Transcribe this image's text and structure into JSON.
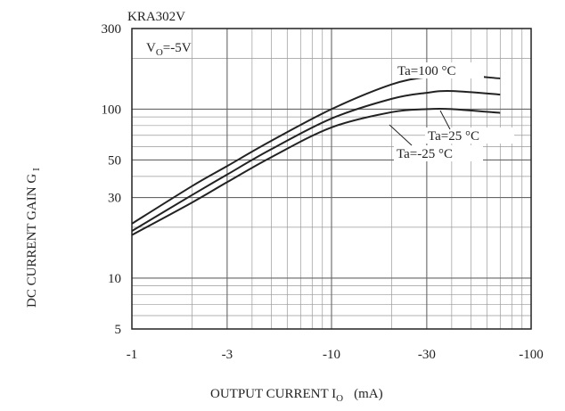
{
  "chart_data": {
    "type": "line",
    "title": "KRA302V",
    "annotation": "VO=-5V",
    "annotation_main": "V",
    "annotation_sub": "O",
    "annotation_rest": "=-5V",
    "xlabel_main": "OUTPUT CURRENT I",
    "xlabel_sub": "O",
    "xlabel_unit": "(mA)",
    "ylabel_main": "DC CURRENT GAIN G",
    "ylabel_sub": "I",
    "xscale": "log",
    "yscale": "log",
    "xlim": [
      -1,
      -100
    ],
    "ylim": [
      5,
      300
    ],
    "grid": true,
    "x_ticks": [
      -1,
      -3,
      -10,
      -30,
      -100
    ],
    "x_tick_labels": [
      "-1",
      "-3",
      "-10",
      "-30",
      "-100"
    ],
    "y_ticks": [
      5,
      10,
      30,
      50,
      100,
      300
    ],
    "y_tick_labels": [
      "5",
      "10",
      "30",
      "50",
      "100",
      "300"
    ],
    "series": [
      {
        "name": "Ta=100°C",
        "label": "Ta=100 °C",
        "x": [
          -1,
          -2,
          -3,
          -5,
          -10,
          -20,
          -30,
          -40,
          -70
        ],
        "y": [
          21,
          35,
          46,
          65,
          100,
          140,
          155,
          160,
          152
        ]
      },
      {
        "name": "Ta=25°C",
        "label": "Ta=25 °C",
        "x": [
          -1,
          -2,
          -3,
          -5,
          -10,
          -20,
          -30,
          -40,
          -70
        ],
        "y": [
          19,
          31,
          41,
          58,
          88,
          115,
          125,
          128,
          122
        ]
      },
      {
        "name": "Ta=-25°C",
        "label": "Ta=-25 °C",
        "x": [
          -1,
          -2,
          -3,
          -5,
          -10,
          -20,
          -30,
          -40,
          -70
        ],
        "y": [
          18,
          28,
          37,
          52,
          78,
          96,
          100,
          100,
          95
        ]
      }
    ]
  }
}
